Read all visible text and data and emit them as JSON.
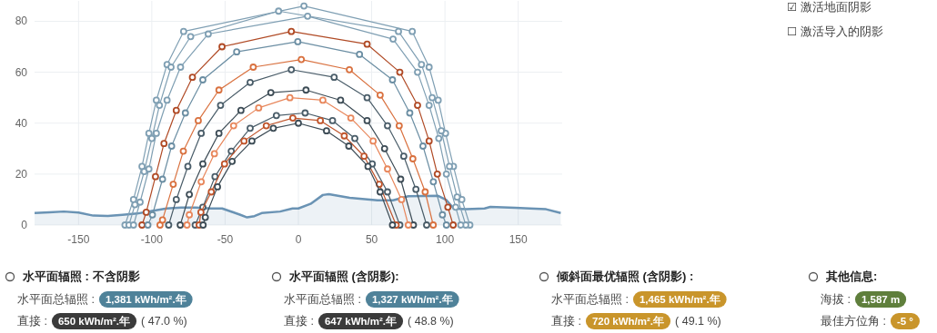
{
  "chart_data": {
    "type": "line",
    "xlim": [
      -180,
      180
    ],
    "ylim": [
      0,
      88
    ],
    "xticks": [
      -150,
      -100,
      -50,
      0,
      50,
      100,
      150
    ],
    "yticks": [
      0,
      20,
      40,
      60,
      80
    ],
    "grid": true,
    "marker": "circle",
    "series": [
      {
        "type": "area",
        "marker": "none",
        "color": "#6a93b4",
        "x": [
          -180,
          -170,
          -160,
          -150,
          -140,
          -130,
          -120,
          -110,
          -100,
          -90,
          -80,
          -70,
          -60,
          -52,
          -40,
          -35,
          -30,
          -25,
          -12.5,
          -4,
          0,
          8.3,
          16.7,
          20.8,
          35,
          54,
          64.6,
          75,
          95,
          101,
          106,
          114.6,
          127,
          131,
          148,
          158,
          169,
          179
        ],
        "values": [
          4.7,
          5,
          5.3,
          4.9,
          3.7,
          3.6,
          4,
          4.5,
          5.5,
          6.5,
          6.9,
          6.9,
          6.5,
          6.5,
          4.1,
          3,
          3.5,
          4.7,
          5.3,
          6.5,
          6.5,
          8.3,
          11.8,
          12.1,
          10.7,
          9.7,
          9.7,
          11.3,
          11.5,
          9.8,
          6.5,
          6.2,
          6.5,
          7.1,
          6.8,
          6.5,
          6.2,
          4.7
        ]
      },
      {
        "color": "#7f9fb3",
        "x": [
          -118.3,
          -112.5,
          -106.7,
          -102,
          -96.9,
          -89.6,
          -78.3,
          3.8,
          77.7,
          89.2,
          95.4,
          100.4,
          105.8,
          111.5,
          117
        ],
        "values": [
          0,
          10,
          23,
          36,
          49,
          63,
          76,
          86,
          76,
          62,
          49,
          36,
          23,
          10,
          0
        ]
      },
      {
        "color": "#7f9fb3",
        "x": [
          -115.6,
          -111.5,
          -105.2,
          -100,
          -94.8,
          -86.9,
          -73.5,
          -13.5,
          68.3,
          84,
          91.3,
          97.5,
          103.1,
          108.3,
          114.2
        ],
        "values": [
          0,
          8,
          21,
          34,
          47,
          62,
          74,
          84,
          76,
          63,
          50,
          37,
          23,
          11,
          0
        ]
      },
      {
        "color": "#7f9fb3",
        "x": [
          -112.5,
          -108,
          -102,
          -96.9,
          -89.6,
          -80.4,
          -61.5,
          6.3,
          64.6,
          81.3,
          89.2,
          95.8,
          101,
          107.3,
          110.8
        ],
        "values": [
          0,
          9,
          22,
          36,
          49,
          62,
          75,
          82,
          73,
          60,
          47,
          34,
          20,
          7,
          0
        ]
      },
      {
        "color": "#b04a25",
        "x": [
          -106.7,
          -103.8,
          -97.5,
          -91.7,
          -83.3,
          -72.3,
          -52.1,
          -4.8,
          46.9,
          69.2,
          81.3,
          89.2,
          94.8,
          102,
          105.6
        ],
        "values": [
          0,
          5,
          19,
          32,
          45,
          58,
          70,
          76,
          71,
          60,
          47,
          33,
          20,
          7,
          0
        ]
      },
      {
        "color": "#6b8ea3",
        "x": [
          -102.7,
          -99.6,
          -92.7,
          -86.5,
          -77.1,
          -65.2,
          -42.1,
          -0.4,
          41.7,
          64.2,
          76,
          85,
          92.1,
          98.3,
          101
        ],
        "values": [
          0,
          4,
          18,
          31,
          44,
          57,
          68,
          72,
          67,
          57,
          44,
          31,
          17,
          4,
          0
        ]
      },
      {
        "color": "#d9713f",
        "x": [
          -94.4,
          -92.7,
          -85.4,
          -78.5,
          -68.3,
          -54.2,
          -30.8,
          2,
          34.8,
          55.8,
          68.8,
          78.1,
          86.5,
          92
        ],
        "values": [
          0,
          2,
          16,
          29,
          41,
          53,
          62,
          65,
          61,
          51,
          39,
          26,
          13,
          0
        ]
      },
      {
        "color": "#4a5d69",
        "x": [
          -88.5,
          -83.3,
          -75.4,
          -66.3,
          -53.1,
          -32.9,
          -4.8,
          24.4,
          46.9,
          60.8,
          71.9,
          80.2,
          87.5
        ],
        "values": [
          0,
          10,
          23,
          36,
          47,
          56,
          61,
          58,
          50,
          39,
          27,
          14,
          0
        ]
      },
      {
        "color": "#3d4c56",
        "x": [
          -80.6,
          -74.4,
          -65.2,
          -54.2,
          -39.2,
          -18.8,
          5.2,
          28.8,
          46.9,
          58.8,
          69.8,
          78.5
        ],
        "values": [
          0,
          12,
          24,
          36,
          45,
          52,
          53,
          49,
          41,
          30,
          18,
          0
        ]
      },
      {
        "color": "#e8875c",
        "x": [
          -76,
          -74.4,
          -66.3,
          -57.3,
          -44.2,
          -27.1,
          -5.8,
          16.7,
          35.8,
          51,
          60.8,
          70.4,
          75
        ],
        "values": [
          0,
          4,
          17,
          28,
          39,
          46,
          50,
          49,
          42,
          33,
          22,
          10,
          0
        ]
      },
      {
        "color": "#4a5d69",
        "x": [
          -70.4,
          -65.2,
          -56.9,
          -45.8,
          -32.9,
          -15,
          4.6,
          23.3,
          38.5,
          50.4,
          60.8,
          69.2
        ],
        "values": [
          0,
          7,
          19,
          29,
          38,
          43,
          44,
          41,
          34,
          24,
          13,
          0
        ]
      },
      {
        "color": "#c0552c",
        "x": [
          -67.7,
          -66.5,
          -59.4,
          -50.4,
          -37.1,
          -21.9,
          -3.8,
          15,
          31.3,
          44.8,
          55.2,
          66.7
        ],
        "values": [
          0,
          5,
          13,
          24,
          33,
          39,
          42,
          41,
          35,
          27,
          16,
          0
        ]
      },
      {
        "color": "#3d4c56",
        "x": [
          -65,
          -63.5,
          -55.2,
          -45.2,
          -31.7,
          -17.1,
          0,
          19.2,
          34.4,
          47.5,
          55.8,
          64.2
        ],
        "values": [
          0,
          3,
          15,
          25,
          33,
          38,
          40,
          37,
          31,
          23,
          13,
          0
        ]
      }
    ],
    "annotations": [
      "水平面辐照 : 不含阴影",
      "水平面总辐照 :",
      "1,381 kWh/m².年",
      "直接 :",
      "650 kWh/m².年",
      "( 47.0 %)",
      "水平面辐照 (含阴影):",
      "水平面总辐照 :",
      "1,327 kWh/m².年",
      "直接 :",
      "647 kWh/m².年",
      "( 48.8 %)",
      "倾斜面最优辐照 (含阴影) :",
      "水平面总辐照 :",
      "1,465 kWh/m².年",
      "直接 :",
      "720 kWh/m².年",
      "( 49.1 %)",
      "其他信息:",
      "海拔 :",
      "1,587 m",
      "最佳方位角 :",
      "-5 °",
      "☑ 激活地面阴影",
      "☐ 激活导入的阴影"
    ]
  }
}
